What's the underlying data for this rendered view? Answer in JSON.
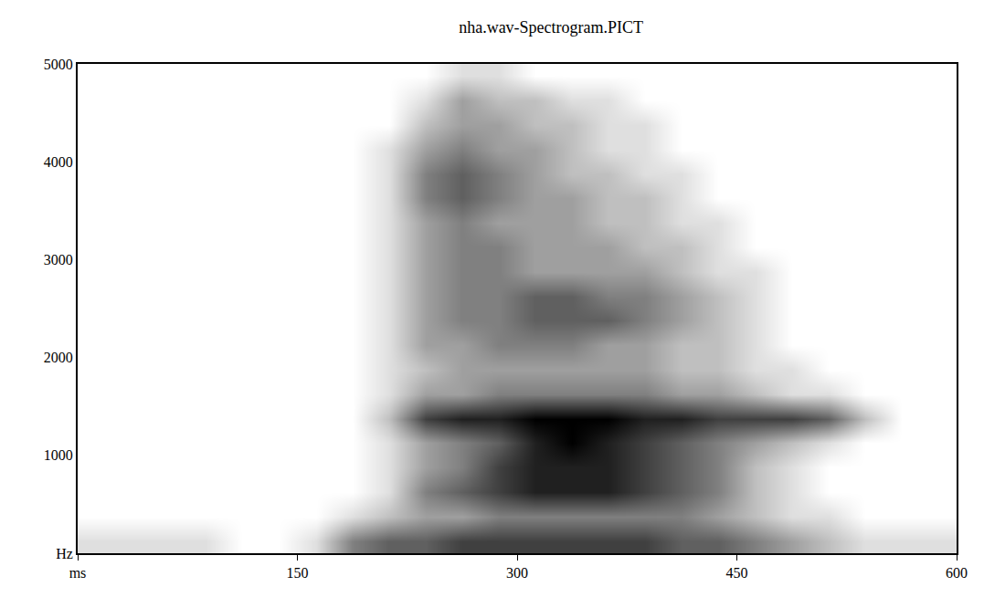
{
  "chart_data": {
    "type": "heatmap",
    "title": "nha.wav-Spectrogram.PICT",
    "x": [
      12.5,
      37.5,
      62.5,
      87.5,
      112.5,
      137.5,
      162.5,
      187.5,
      212.5,
      237.5,
      262.5,
      287.5,
      312.5,
      337.5,
      362.5,
      387.5,
      412.5,
      437.5,
      462.5,
      487.5,
      512.5,
      537.5,
      562.5,
      587.5
    ],
    "y": [
      125,
      375,
      625,
      875,
      1125,
      1375,
      1625,
      1875,
      2125,
      2375,
      2625,
      2875,
      3125,
      3375,
      3625,
      3875,
      4125,
      4375,
      4625,
      4875
    ],
    "z": [
      [
        1,
        1,
        1,
        1,
        0,
        0,
        1,
        4,
        5,
        5,
        6,
        6,
        6,
        6,
        6,
        6,
        5,
        5,
        4,
        3,
        2,
        1,
        1,
        1
      ],
      [
        0,
        0,
        0,
        0,
        0,
        0,
        0,
        1,
        2,
        3,
        3,
        4,
        4,
        4,
        4,
        4,
        4,
        3,
        2,
        1,
        1,
        0,
        0,
        0
      ],
      [
        0,
        0,
        0,
        0,
        0,
        0,
        0,
        0,
        1,
        4,
        5,
        6,
        7,
        7,
        7,
        6,
        5,
        4,
        2,
        1,
        0,
        0,
        0,
        0
      ],
      [
        0,
        0,
        0,
        0,
        0,
        0,
        0,
        0,
        1,
        3,
        4,
        6,
        7,
        7,
        7,
        6,
        5,
        4,
        2,
        1,
        0,
        0,
        0,
        0
      ],
      [
        0,
        0,
        0,
        0,
        0,
        0,
        0,
        0,
        1,
        3,
        4,
        5,
        7,
        8,
        7,
        6,
        5,
        4,
        3,
        2,
        1,
        0,
        0,
        0
      ],
      [
        0,
        0,
        0,
        0,
        0,
        0,
        0,
        0,
        2,
        6,
        7,
        7,
        8,
        8,
        8,
        7,
        7,
        6,
        6,
        6,
        5,
        2,
        0,
        0
      ],
      [
        0,
        0,
        0,
        0,
        0,
        0,
        0,
        0,
        1,
        3,
        3,
        4,
        4,
        4,
        4,
        4,
        3,
        3,
        2,
        1,
        1,
        0,
        0,
        0
      ],
      [
        0,
        0,
        0,
        0,
        0,
        0,
        0,
        0,
        1,
        2,
        3,
        3,
        3,
        3,
        3,
        3,
        2,
        2,
        1,
        1,
        0,
        0,
        0,
        0
      ],
      [
        0,
        0,
        0,
        0,
        0,
        0,
        0,
        0,
        1,
        3,
        3,
        4,
        4,
        4,
        3,
        3,
        2,
        2,
        1,
        0,
        0,
        0,
        0,
        0
      ],
      [
        0,
        0,
        0,
        0,
        0,
        0,
        0,
        0,
        1,
        3,
        4,
        4,
        5,
        5,
        5,
        4,
        3,
        2,
        1,
        0,
        0,
        0,
        0,
        0
      ],
      [
        0,
        0,
        0,
        0,
        0,
        0,
        0,
        0,
        1,
        3,
        4,
        4,
        5,
        5,
        4,
        4,
        3,
        2,
        1,
        0,
        0,
        0,
        0,
        0
      ],
      [
        0,
        0,
        0,
        0,
        0,
        0,
        0,
        0,
        1,
        3,
        4,
        4,
        3,
        3,
        3,
        3,
        2,
        1,
        1,
        0,
        0,
        0,
        0,
        0
      ],
      [
        0,
        0,
        0,
        0,
        0,
        0,
        0,
        0,
        1,
        3,
        4,
        4,
        3,
        3,
        3,
        2,
        2,
        1,
        0,
        0,
        0,
        0,
        0,
        0
      ],
      [
        0,
        0,
        0,
        0,
        0,
        0,
        0,
        0,
        1,
        3,
        4,
        3,
        3,
        3,
        2,
        2,
        1,
        1,
        0,
        0,
        0,
        0,
        0,
        0
      ],
      [
        0,
        0,
        0,
        0,
        0,
        0,
        0,
        0,
        1,
        4,
        5,
        4,
        3,
        3,
        2,
        2,
        1,
        0,
        0,
        0,
        0,
        0,
        0,
        0
      ],
      [
        0,
        0,
        0,
        0,
        0,
        0,
        0,
        0,
        1,
        4,
        5,
        4,
        3,
        2,
        2,
        1,
        1,
        0,
        0,
        0,
        0,
        0,
        0,
        0
      ],
      [
        0,
        0,
        0,
        0,
        0,
        0,
        0,
        0,
        1,
        3,
        4,
        3,
        3,
        2,
        1,
        1,
        0,
        0,
        0,
        0,
        0,
        0,
        0,
        0
      ],
      [
        0,
        0,
        0,
        0,
        0,
        0,
        0,
        0,
        0,
        2,
        3,
        3,
        2,
        2,
        1,
        1,
        0,
        0,
        0,
        0,
        0,
        0,
        0,
        0
      ],
      [
        0,
        0,
        0,
        0,
        0,
        0,
        0,
        0,
        0,
        1,
        3,
        2,
        2,
        1,
        1,
        0,
        0,
        0,
        0,
        0,
        0,
        0,
        0,
        0
      ],
      [
        0,
        0,
        0,
        0,
        0,
        0,
        0,
        0,
        0,
        0,
        1,
        1,
        0,
        0,
        0,
        0,
        0,
        0,
        0,
        0,
        0,
        0,
        0,
        0
      ]
    ],
    "xlim": [
      0,
      600
    ],
    "ylim": [
      0,
      5000
    ],
    "xticks": [
      {
        "value": 0,
        "label": "ms"
      },
      150,
      300,
      450,
      600
    ],
    "yticks": [
      {
        "value": 0,
        "label": "Hz"
      },
      1000,
      2000,
      3000,
      4000,
      5000
    ],
    "grid": "y",
    "color": "#000000"
  }
}
